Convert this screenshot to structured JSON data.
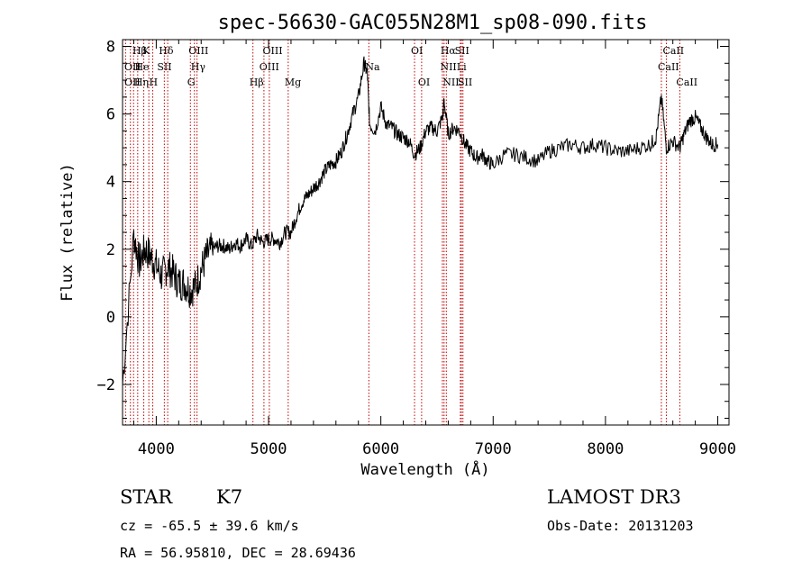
{
  "chart_data": {
    "type": "line",
    "title": "spec-56630-GAC055N28M1_sp08-090.fits",
    "xlabel": "Wavelength (Å)",
    "ylabel": "Flux (relative)",
    "xlim": [
      3700,
      9100
    ],
    "ylim": [
      -3.2,
      8.2
    ],
    "xticks": [
      4000,
      5000,
      6000,
      7000,
      8000,
      9000
    ],
    "yticks": [
      -2,
      0,
      2,
      4,
      6,
      8
    ],
    "grid": false,
    "series": [
      {
        "x": [
          3700,
          3800,
          3850,
          3900,
          3950,
          4000,
          4050,
          4100,
          4150,
          4200,
          4250,
          4300,
          4350,
          4400,
          4450,
          4500,
          4550,
          4600,
          4650,
          4700,
          4750,
          4800,
          4850,
          4900,
          4950,
          5000,
          5050,
          5100,
          5150,
          5200,
          5250,
          5300,
          5350,
          5400,
          5450,
          5500,
          5550,
          5600,
          5650,
          5700,
          5750,
          5800,
          5850,
          5880,
          5900,
          5950,
          6000,
          6050,
          6100,
          6150,
          6200,
          6250,
          6300,
          6350,
          6400,
          6450,
          6500,
          6550,
          6563,
          6600,
          6650,
          6700,
          6750,
          6800,
          6850,
          6900,
          6950,
          7000,
          7100,
          7200,
          7300,
          7400,
          7500,
          7600,
          7700,
          7800,
          7900,
          8000,
          8100,
          8200,
          8300,
          8400,
          8450,
          8498,
          8542,
          8600,
          8662,
          8700,
          8750,
          8800,
          8850,
          8900,
          8950,
          9000
        ],
        "y": [
          -2.0,
          2.4,
          1.6,
          2.0,
          1.8,
          1.5,
          1.2,
          1.5,
          1.3,
          1.0,
          1.0,
          0.8,
          0.9,
          1.4,
          1.8,
          2.0,
          2.1,
          2.1,
          2.0,
          2.2,
          2.1,
          2.3,
          2.1,
          2.4,
          2.2,
          2.3,
          2.3,
          2.2,
          2.5,
          2.5,
          3.0,
          3.4,
          3.6,
          3.8,
          4.0,
          4.3,
          4.5,
          4.6,
          4.9,
          5.4,
          6.0,
          6.5,
          7.5,
          7.2,
          5.7,
          5.5,
          6.2,
          5.7,
          5.6,
          5.4,
          5.3,
          5.2,
          4.8,
          5.0,
          5.5,
          5.6,
          5.5,
          5.9,
          6.4,
          5.4,
          5.6,
          5.5,
          5.1,
          4.9,
          4.7,
          4.8,
          4.6,
          4.5,
          4.8,
          4.8,
          4.7,
          4.6,
          4.9,
          5.0,
          5.1,
          5.0,
          5.1,
          5.0,
          4.9,
          4.9,
          5.0,
          5.1,
          5.3,
          6.5,
          5.0,
          5.2,
          5.0,
          5.4,
          5.8,
          5.9,
          5.6,
          5.3,
          5.1,
          5.1
        ]
      }
    ],
    "line_labels": [
      {
        "text": "Hβ",
        "x": 3820,
        "row": 1
      },
      {
        "text": "K",
        "x": 3910,
        "row": 1
      },
      {
        "text": "Hδ",
        "x": 4055,
        "row": 1
      },
      {
        "text": "OIII",
        "x": 4320,
        "row": 1
      },
      {
        "text": "OIII",
        "x": 4980,
        "row": 1
      },
      {
        "text": "OI",
        "x": 6300,
        "row": 1
      },
      {
        "text": "Hα",
        "x": 6563,
        "row": 1
      },
      {
        "text": "SII",
        "x": 6690,
        "row": 1
      },
      {
        "text": "CaII",
        "x": 8542,
        "row": 1
      },
      {
        "text": "OII",
        "x": 3720,
        "row": 2
      },
      {
        "text": "He",
        "x": 3840,
        "row": 2
      },
      {
        "text": "I",
        "x": 3860,
        "row": 2
      },
      {
        "text": "SII",
        "x": 4040,
        "row": 2
      },
      {
        "text": "Hγ",
        "x": 4340,
        "row": 2
      },
      {
        "text": "OIII",
        "x": 4950,
        "row": 2
      },
      {
        "text": "Na",
        "x": 5893,
        "row": 2
      },
      {
        "text": "NII",
        "x": 6560,
        "row": 2
      },
      {
        "text": "Li",
        "x": 6708,
        "row": 2
      },
      {
        "text": "CaII",
        "x": 8498,
        "row": 2
      },
      {
        "text": "OII",
        "x": 3720,
        "row": 3
      },
      {
        "text": "Hη",
        "x": 3835,
        "row": 3
      },
      {
        "text": "H",
        "x": 3969,
        "row": 3
      },
      {
        "text": "G",
        "x": 4308,
        "row": 3
      },
      {
        "text": "Hβ",
        "x": 4861,
        "row": 3
      },
      {
        "text": "Mg",
        "x": 5175,
        "row": 3
      },
      {
        "text": "OI",
        "x": 6363,
        "row": 3
      },
      {
        "text": "NII",
        "x": 6583,
        "row": 3
      },
      {
        "text": "SII",
        "x": 6717,
        "row": 3
      },
      {
        "text": "CaII",
        "x": 8662,
        "row": 3
      }
    ],
    "line_marks": [
      3727,
      3770,
      3798,
      3835,
      3889,
      3934,
      3969,
      4072,
      4102,
      4304,
      4340,
      4363,
      4861,
      4959,
      5007,
      5175,
      5893,
      6300,
      6363,
      6548,
      6563,
      6583,
      6708,
      6717,
      6731,
      8498,
      8542,
      8662
    ]
  },
  "info": {
    "object_class": "STAR",
    "subclass": "K7",
    "survey": "LAMOST DR3",
    "cz": "cz = -65.5 ± 39.6 km/s",
    "obs_date": "Obs-Date: 20131203",
    "coords": "RA =  56.95810, DEC =  28.69436"
  }
}
